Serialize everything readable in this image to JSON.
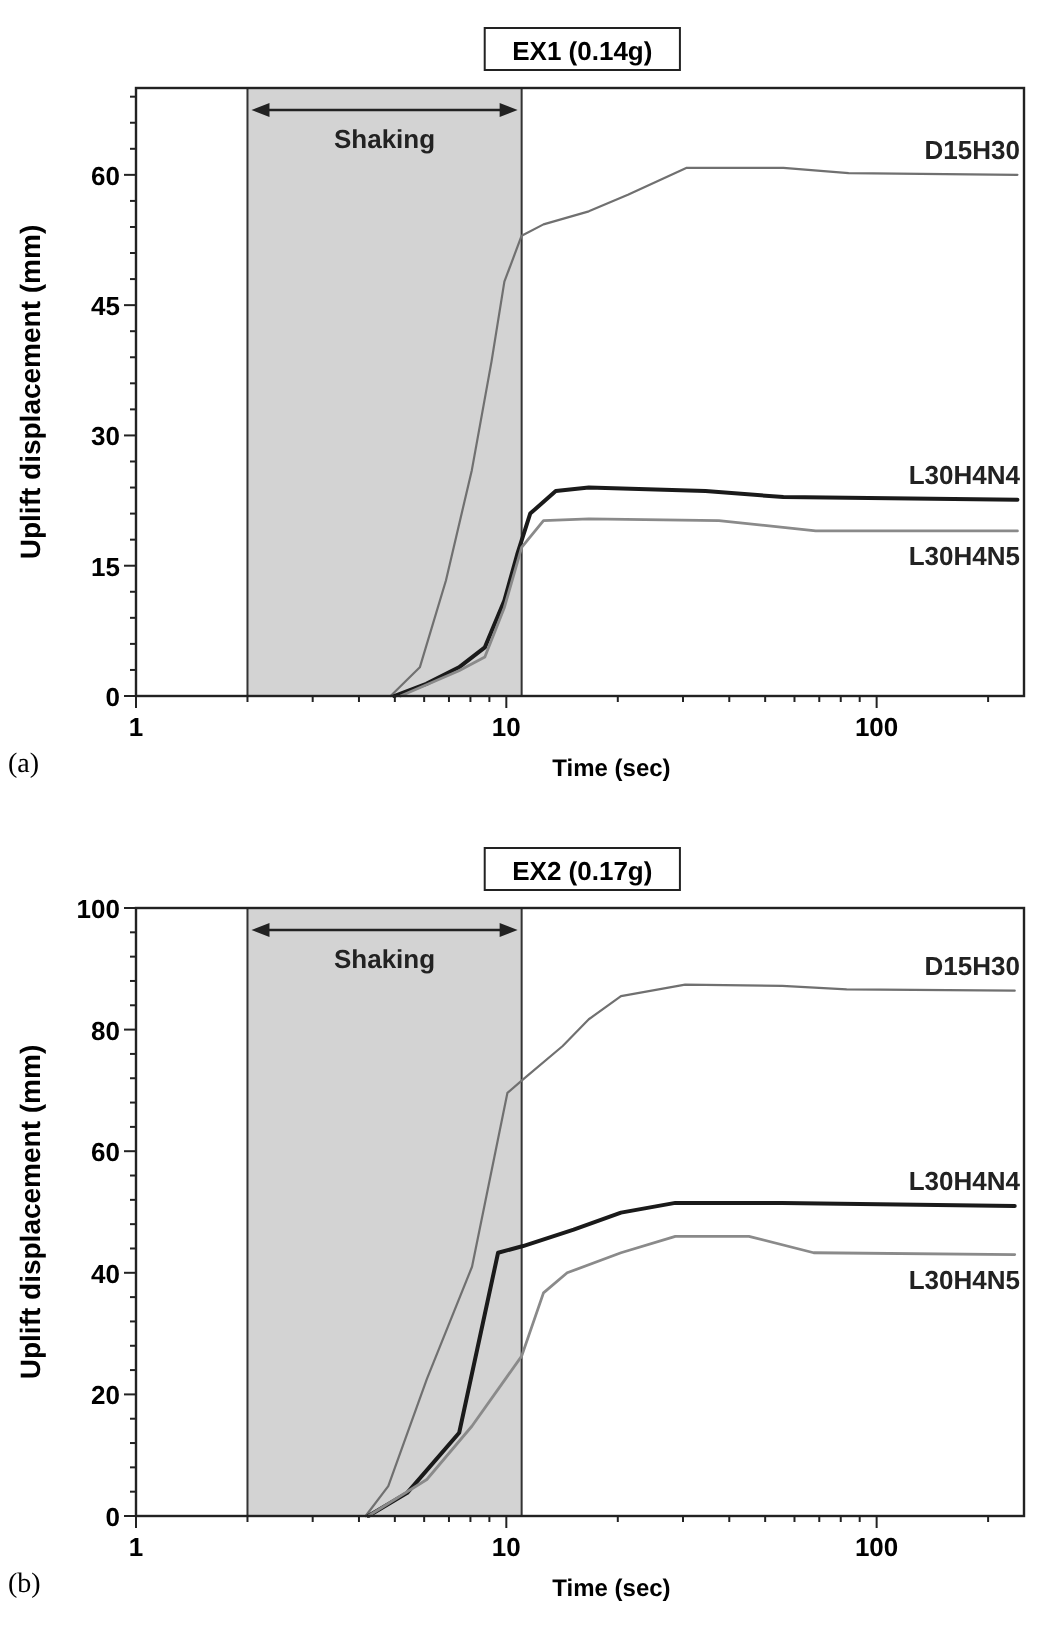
{
  "chart_data": [
    {
      "type": "line",
      "title": "EX1 (0.14g)",
      "xlabel": "Time (sec)",
      "ylabel": "Uplift displacement (mm)",
      "log": "x",
      "xlim": [
        1,
        250
      ],
      "ylim": [
        0,
        70
      ],
      "grid": false,
      "marker": "none",
      "line_style": "solid",
      "xticks": [
        1,
        {
          "value": 2,
          "label": null
        },
        {
          "value": 3,
          "label": null
        },
        {
          "value": 4,
          "label": null
        },
        {
          "value": 5,
          "label": null
        },
        {
          "value": 6,
          "label": null
        },
        {
          "value": 7,
          "label": null
        },
        {
          "value": 8,
          "label": null
        },
        {
          "value": 9,
          "label": null
        },
        10,
        {
          "value": 20,
          "label": null
        },
        {
          "value": 30,
          "label": null
        },
        {
          "value": 40,
          "label": null
        },
        {
          "value": 50,
          "label": null
        },
        {
          "value": 60,
          "label": null
        },
        {
          "value": 70,
          "label": null
        },
        {
          "value": 80,
          "label": null
        },
        {
          "value": 90,
          "label": null
        },
        100,
        {
          "value": 200,
          "label": null
        }
      ],
      "yticks": [
        0,
        {
          "value": 3,
          "label": null
        },
        {
          "value": 6,
          "label": null
        },
        {
          "value": 9,
          "label": null
        },
        {
          "value": 12,
          "label": null
        },
        15,
        {
          "value": 18,
          "label": null
        },
        {
          "value": 21,
          "label": null
        },
        {
          "value": 24,
          "label": null
        },
        {
          "value": 27,
          "label": null
        },
        30,
        {
          "value": 33,
          "label": null
        },
        {
          "value": 36,
          "label": null
        },
        {
          "value": 39,
          "label": null
        },
        {
          "value": 42,
          "label": null
        },
        45,
        {
          "value": 48,
          "label": null
        },
        {
          "value": 51,
          "label": null
        },
        {
          "value": 54,
          "label": null
        },
        {
          "value": 57,
          "label": null
        },
        60,
        {
          "value": 63,
          "label": null
        },
        {
          "value": 66,
          "label": null
        },
        {
          "value": 69,
          "label": null
        }
      ],
      "bands": [
        {
          "axis": "x",
          "from": 2,
          "to": 11,
          "label": "Shaking",
          "color": "#d3d3d3"
        }
      ],
      "annotations": [
        "(a)"
      ],
      "series": [
        {
          "name": "D15H30",
          "color": "#707070",
          "x": [
            4.87,
            5.84,
            6.87,
            8.07,
            9.12,
            9.88,
            11,
            12.6,
            16.7,
            21.3,
            30.6,
            56,
            84,
            240
          ],
          "values": [
            0,
            3.3,
            13.3,
            26,
            38.5,
            47.7,
            53,
            54.3,
            55.8,
            57.7,
            60.8,
            60.8,
            60.2,
            60
          ]
        },
        {
          "name": "L30H4N4",
          "color": "#1a1a1a",
          "x": [
            4.98,
            6.08,
            7.45,
            8.75,
            9.88,
            10.7,
            11.6,
            13.6,
            16.7,
            34.5,
            56,
            240
          ],
          "values": [
            0,
            1.4,
            3.3,
            5.6,
            11,
            16.3,
            21,
            23.6,
            24,
            23.6,
            22.9,
            22.6
          ]
        },
        {
          "name": "L30H4N5",
          "color": "#8a8a8a",
          "x": [
            5.18,
            7.45,
            8.75,
            9.88,
            11,
            12.6,
            16.7,
            37.5,
            68.5,
            240
          ],
          "values": [
            0,
            2.9,
            4.5,
            10.2,
            17.1,
            20.2,
            20.4,
            20.2,
            19,
            19
          ]
        }
      ]
    },
    {
      "type": "line",
      "title": "EX2 (0.17g)",
      "xlabel": "Time (sec)",
      "ylabel": "Uplift displacement (mm)",
      "log": "x",
      "xlim": [
        1,
        250
      ],
      "ylim": [
        0,
        100
      ],
      "grid": false,
      "marker": "none",
      "line_style": "solid",
      "xticks": [
        1,
        {
          "value": 2,
          "label": null
        },
        {
          "value": 3,
          "label": null
        },
        {
          "value": 4,
          "label": null
        },
        {
          "value": 5,
          "label": null
        },
        {
          "value": 6,
          "label": null
        },
        {
          "value": 7,
          "label": null
        },
        {
          "value": 8,
          "label": null
        },
        {
          "value": 9,
          "label": null
        },
        10,
        {
          "value": 20,
          "label": null
        },
        {
          "value": 30,
          "label": null
        },
        {
          "value": 40,
          "label": null
        },
        {
          "value": 50,
          "label": null
        },
        {
          "value": 60,
          "label": null
        },
        {
          "value": 70,
          "label": null
        },
        {
          "value": 80,
          "label": null
        },
        {
          "value": 90,
          "label": null
        },
        100,
        {
          "value": 200,
          "label": null
        }
      ],
      "yticks": [
        0,
        {
          "value": 4,
          "label": null
        },
        {
          "value": 8,
          "label": null
        },
        {
          "value": 12,
          "label": null
        },
        {
          "value": 16,
          "label": null
        },
        20,
        {
          "value": 24,
          "label": null
        },
        {
          "value": 28,
          "label": null
        },
        {
          "value": 32,
          "label": null
        },
        {
          "value": 36,
          "label": null
        },
        40,
        {
          "value": 44,
          "label": null
        },
        {
          "value": 48,
          "label": null
        },
        {
          "value": 52,
          "label": null
        },
        {
          "value": 56,
          "label": null
        },
        60,
        {
          "value": 64,
          "label": null
        },
        {
          "value": 68,
          "label": null
        },
        {
          "value": 72,
          "label": null
        },
        {
          "value": 76,
          "label": null
        },
        80,
        {
          "value": 84,
          "label": null
        },
        {
          "value": 88,
          "label": null
        },
        {
          "value": 92,
          "label": null
        },
        {
          "value": 96,
          "label": null
        },
        100
      ],
      "bands": [
        {
          "axis": "x",
          "from": 2,
          "to": 11,
          "label": "Shaking",
          "color": "#d3d3d3"
        }
      ],
      "annotations": [
        "(b)"
      ],
      "series": [
        {
          "name": "D15H30",
          "color": "#707070",
          "x": [
            4.17,
            4.8,
            6.1,
            8.08,
            10.07,
            11.1,
            14.2,
            16.7,
            20.4,
            30.4,
            55.6,
            83,
            236
          ],
          "values": [
            0,
            4.9,
            22.5,
            41,
            69.6,
            71.8,
            77.3,
            81.7,
            85.5,
            87.4,
            87.2,
            86.6,
            86.4
          ]
        },
        {
          "name": "L30H4N4",
          "color": "#1a1a1a",
          "x": [
            4.24,
            5.4,
            7.46,
            9.5,
            11.1,
            15.2,
            20.4,
            28.6,
            55.6,
            236
          ],
          "values": [
            0,
            3.8,
            13.7,
            43.3,
            44.4,
            47.1,
            49.9,
            51.5,
            51.5,
            51
          ]
        },
        {
          "name": "L30H4N5",
          "color": "#8a8a8a",
          "x": [
            4.24,
            6.1,
            8.08,
            11,
            12.6,
            14.6,
            20.4,
            28.6,
            45.2,
            67.6,
            236
          ],
          "values": [
            0,
            6,
            14.8,
            26.3,
            36.7,
            40,
            43.3,
            46,
            46,
            43.3,
            43
          ]
        }
      ]
    }
  ]
}
